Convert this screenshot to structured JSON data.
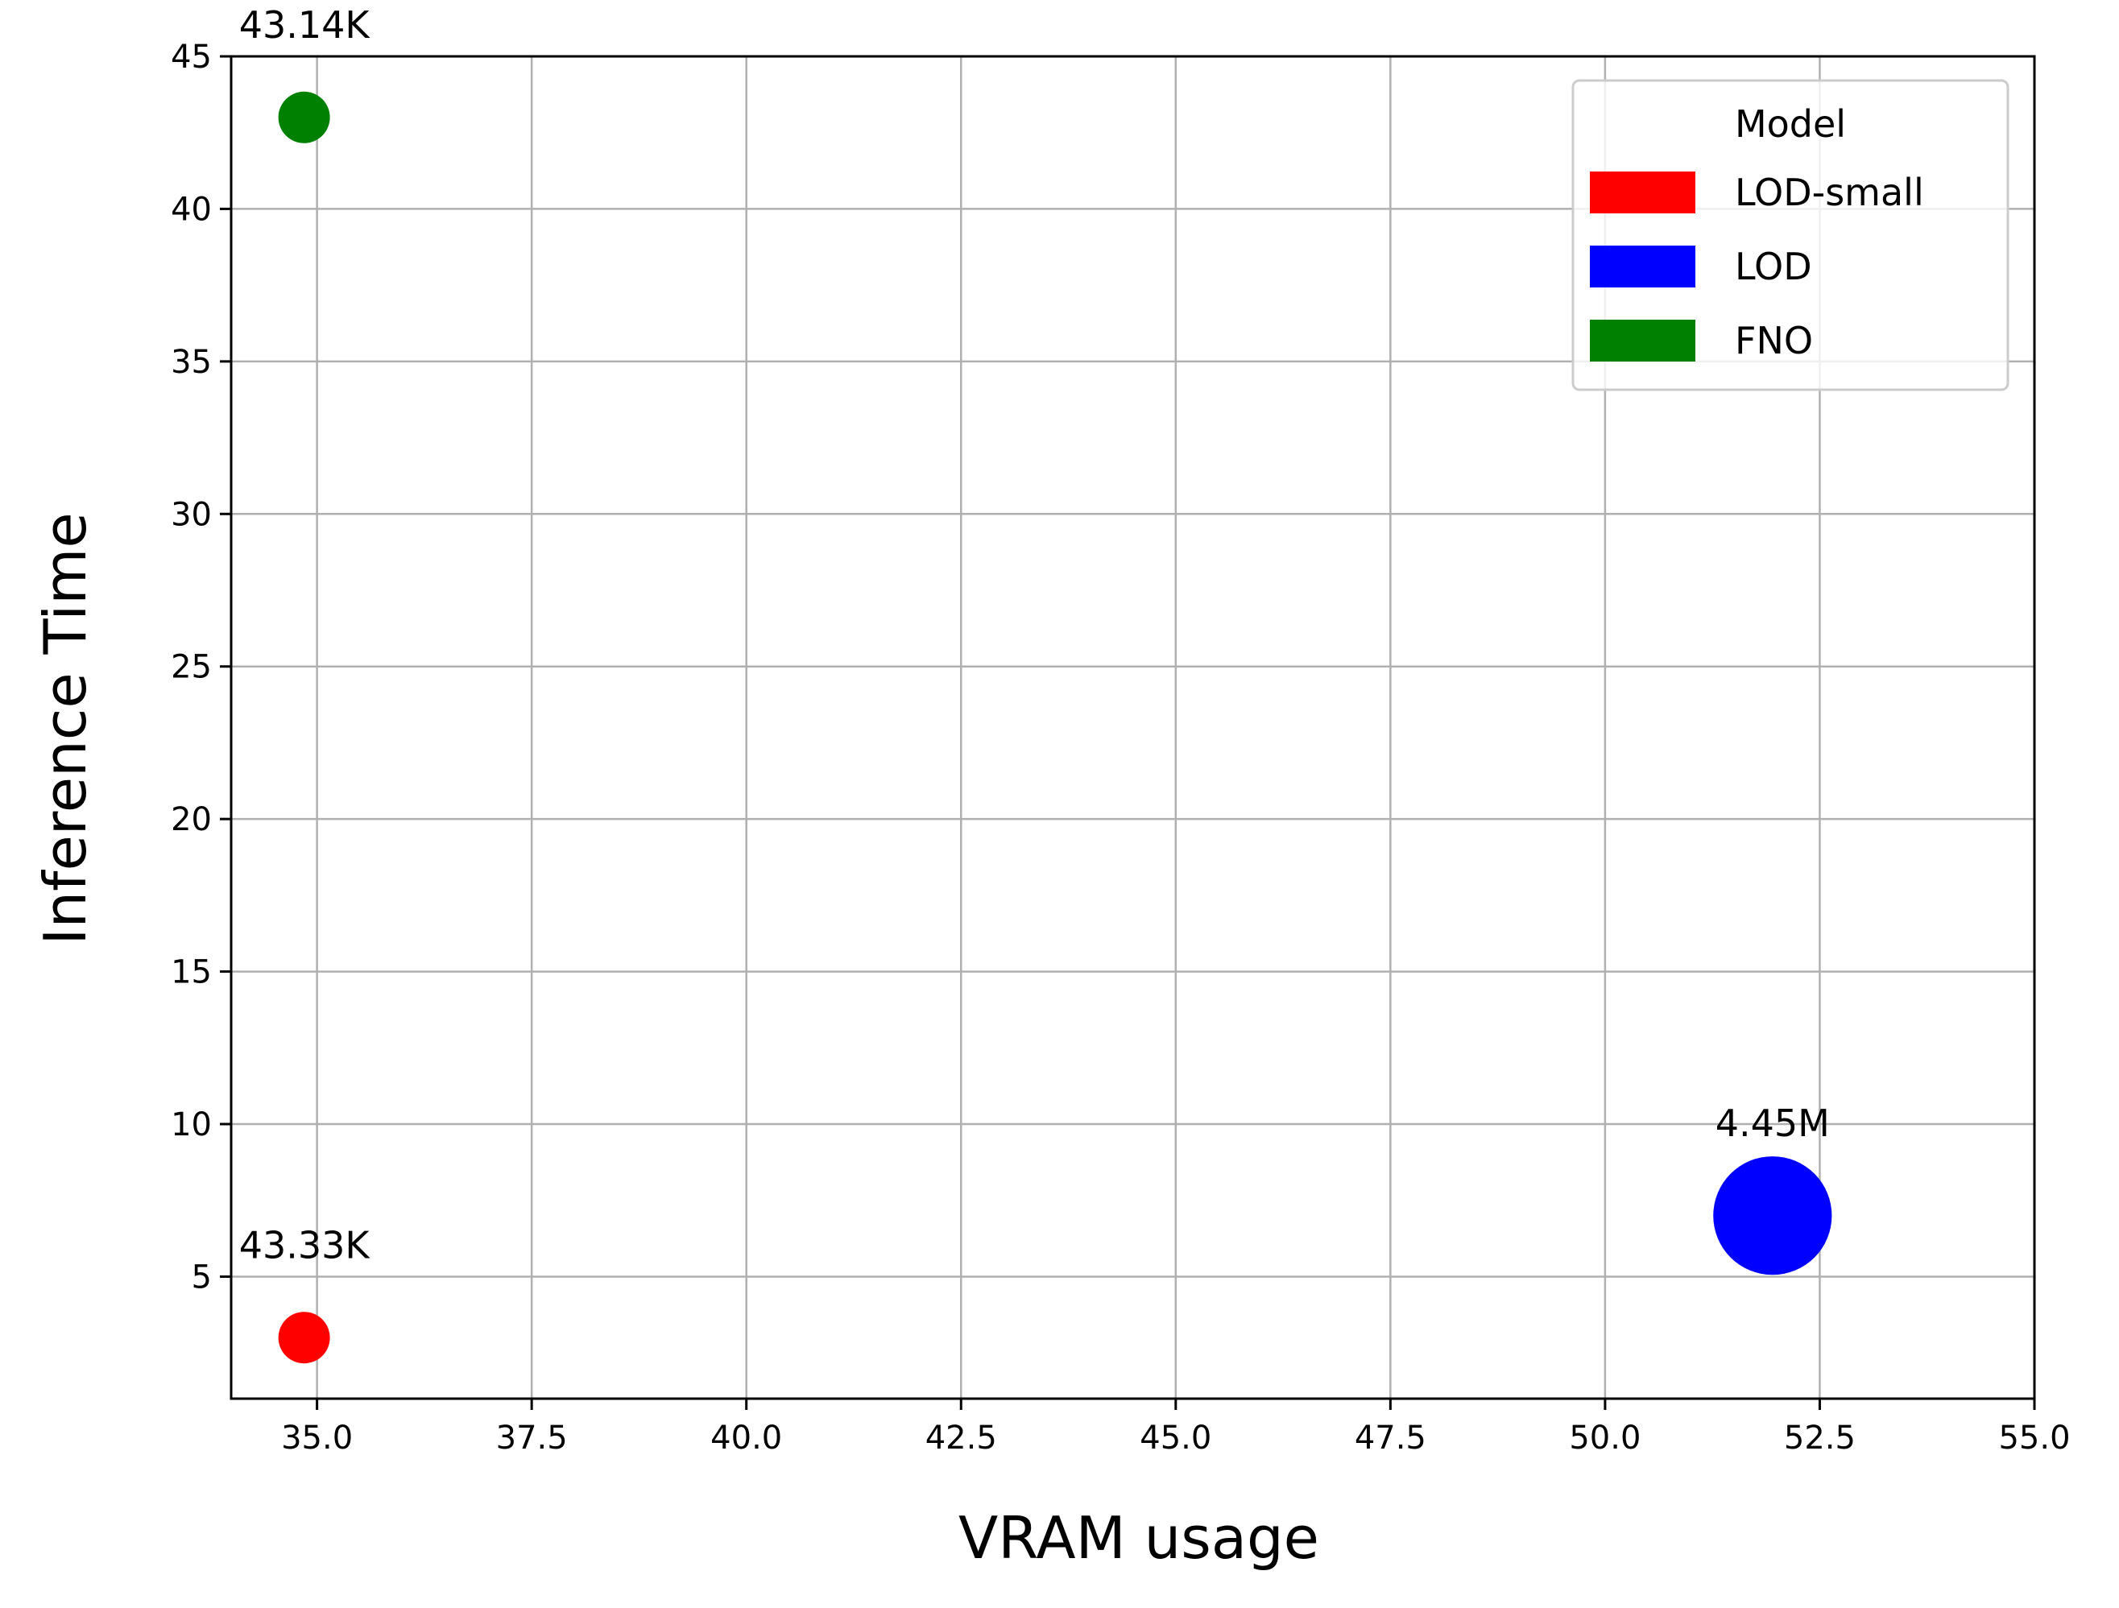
{
  "chart_data": {
    "type": "scatter",
    "xlabel": "VRAM usage",
    "ylabel": "Inference Time",
    "xlim": [
      34.0,
      55.0
    ],
    "ylim": [
      1.0,
      45.0
    ],
    "x_ticks": [
      35.0,
      37.5,
      40.0,
      42.5,
      45.0,
      47.5,
      50.0,
      52.5,
      55.0
    ],
    "x_tick_labels": [
      "35.0",
      "37.5",
      "40.0",
      "42.5",
      "45.0",
      "47.5",
      "50.0",
      "52.5",
      "55.0"
    ],
    "y_ticks": [
      5,
      10,
      15,
      20,
      25,
      30,
      35,
      40,
      45
    ],
    "y_tick_labels": [
      "5",
      "10",
      "15",
      "20",
      "25",
      "30",
      "35",
      "40",
      "45"
    ],
    "grid": true,
    "legend": {
      "title": "Model",
      "placement": "top-right",
      "entries": [
        {
          "label": "LOD-small",
          "color": "#ff0000"
        },
        {
          "label": "LOD",
          "color": "#0000ff"
        },
        {
          "label": "FNO",
          "color": "#008000"
        }
      ]
    },
    "points": [
      {
        "model": "LOD-small",
        "x": 34.85,
        "y": 3.0,
        "label": "43.33K",
        "color": "#ff0000",
        "size_rel": 1.0
      },
      {
        "model": "LOD",
        "x": 51.95,
        "y": 7.0,
        "label": "4.45M",
        "color": "#0000ff",
        "size_rel": 2.3
      },
      {
        "model": "FNO",
        "x": 34.85,
        "y": 43.0,
        "label": "43.14K",
        "color": "#008000",
        "size_rel": 1.0
      }
    ]
  }
}
